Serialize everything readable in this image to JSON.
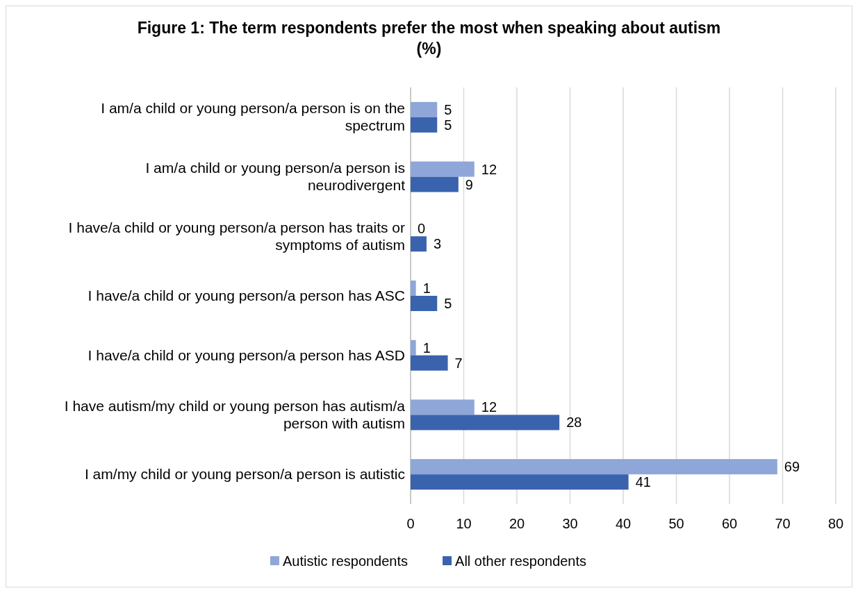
{
  "chart_data": {
    "type": "bar",
    "orientation": "horizontal",
    "title": "Figure 1: The term respondents prefer the most when speaking about autism (%)",
    "categories": [
      "I am/a child or young person/a person is on the spectrum",
      "I am/a child or young person/a person is neurodivergent",
      "I have/a child or young person/a person has traits or symptoms of autism",
      "I have/a child or young person/a person has ASC",
      "I have/a child or young person/a person has ASD",
      "I have autism/my child or young person has autism/a person with autism",
      "I am/my child or young person/a person is autistic"
    ],
    "series": [
      {
        "name": "Autistic respondents",
        "color": "#8fa6d8",
        "values": [
          5,
          12,
          0,
          1,
          1,
          12,
          69
        ]
      },
      {
        "name": "All other respondents",
        "color": "#3a63ae",
        "values": [
          5,
          9,
          3,
          5,
          7,
          28,
          41
        ]
      }
    ],
    "xlim": [
      0,
      80
    ],
    "xticks": [
      0,
      10,
      20,
      30,
      40,
      50,
      60,
      70,
      80
    ],
    "grid": "x",
    "legend": "bottom",
    "data_labels": true
  }
}
